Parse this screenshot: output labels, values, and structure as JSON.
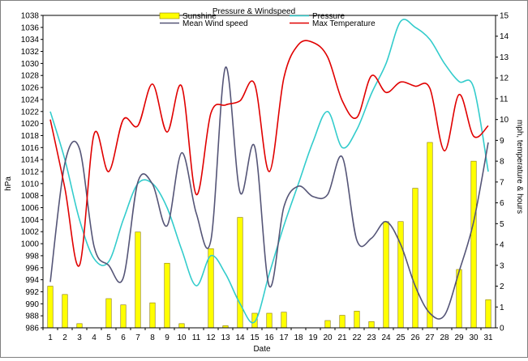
{
  "chart_data": {
    "type": "bar+line",
    "title": "Pressure & Windspeed",
    "xlabel": "Date",
    "ylabel_left": "hPa",
    "ylabel_right": "mph, temperature & hours",
    "x": [
      1,
      2,
      3,
      4,
      5,
      6,
      7,
      8,
      9,
      10,
      11,
      12,
      13,
      14,
      15,
      16,
      17,
      18,
      19,
      20,
      21,
      22,
      23,
      24,
      25,
      26,
      27,
      28,
      29,
      30,
      31
    ],
    "ylim_left": [
      986,
      1038
    ],
    "yticks_left": [
      986,
      988,
      990,
      992,
      994,
      996,
      998,
      1000,
      1002,
      1004,
      1006,
      1008,
      1010,
      1012,
      1014,
      1016,
      1018,
      1020,
      1022,
      1024,
      1026,
      1028,
      1030,
      1032,
      1034,
      1036,
      1038
    ],
    "ylim_right": [
      0,
      15
    ],
    "yticks_right": [
      0,
      1,
      2,
      3,
      4,
      5,
      6,
      7,
      8,
      9,
      10,
      11,
      12,
      13,
      14,
      15
    ],
    "legend": {
      "position": "top",
      "entries": [
        {
          "name": "Sunshine",
          "kind": "bar",
          "color": "#FFFF00"
        },
        {
          "name": "Pressure",
          "kind": "line",
          "color": "#33CCCC"
        },
        {
          "name": "Mean Wind speed",
          "kind": "line",
          "color": "#555577"
        },
        {
          "name": "Max Temperature",
          "kind": "line",
          "color": "#E00000"
        }
      ]
    },
    "series": [
      {
        "name": "Sunshine",
        "axis": "right",
        "kind": "bar",
        "color": "#FFFF00",
        "values": [
          2.0,
          1.6,
          0.2,
          0,
          1.4,
          1.1,
          4.6,
          1.2,
          3.1,
          0.2,
          0,
          3.8,
          0.1,
          5.3,
          0.7,
          0.7,
          0.75,
          0,
          0,
          0.35,
          0.6,
          0.8,
          0.3,
          5.1,
          5.1,
          6.7,
          8.9,
          0,
          2.8,
          8.0,
          1.35
        ]
      },
      {
        "name": "Pressure",
        "axis": "left",
        "kind": "line",
        "color": "#33CCCC",
        "values": [
          1022,
          1014,
          1004,
          997.5,
          997,
          1004,
          1010,
          1010,
          1006,
          999,
          993,
          998,
          995,
          990,
          987,
          995,
          1003,
          1010,
          1017,
          1022,
          1016,
          1019,
          1025,
          1030,
          1037,
          1036,
          1034,
          1030,
          1027,
          1026,
          1012
        ]
      },
      {
        "name": "Mean Wind speed",
        "axis": "right",
        "kind": "line",
        "color": "#555577",
        "values": [
          2.2,
          7.9,
          8.6,
          3.9,
          3.0,
          2.4,
          7.0,
          6.9,
          4.9,
          8.4,
          5.5,
          4.2,
          12.5,
          6.5,
          8.7,
          2.0,
          5.8,
          6.8,
          6.3,
          6.4,
          8.2,
          4.2,
          4.3,
          5.1,
          4.0,
          2.0,
          0.7,
          0.6,
          2.7,
          5.1,
          8.9
        ]
      },
      {
        "name": "Max Temperature",
        "axis": "right",
        "kind": "line",
        "color": "#E00000",
        "values": [
          10.0,
          6.7,
          3.0,
          9.3,
          7.5,
          10.0,
          9.7,
          11.7,
          9.4,
          11.6,
          6.4,
          10.3,
          10.7,
          10.9,
          11.7,
          7.5,
          12.0,
          13.6,
          13.7,
          13.0,
          10.9,
          10.1,
          12.1,
          11.3,
          11.8,
          11.6,
          11.5,
          8.5,
          11.2,
          9.2,
          9.7
        ]
      }
    ]
  }
}
